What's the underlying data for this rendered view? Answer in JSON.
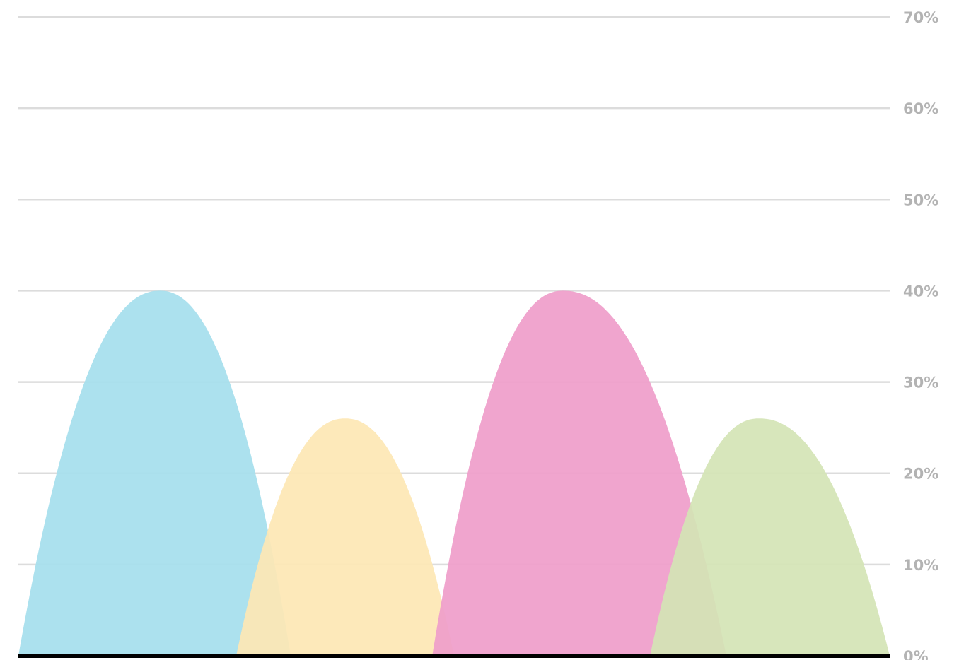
{
  "chart_data": {
    "type": "area",
    "title": "",
    "xlabel": "",
    "ylabel": "",
    "ylim": [
      0,
      70
    ],
    "yticks": [
      0,
      10,
      20,
      30,
      40,
      50,
      60,
      70
    ],
    "ytick_labels": [
      "0%",
      "10%",
      "20%",
      "30%",
      "40%",
      "50%",
      "60%",
      "70%"
    ],
    "y_axis_position": "right",
    "grid": true,
    "legend": "none",
    "x_domain": [
      0,
      4
    ],
    "series": [
      {
        "x_start": 0.0,
        "peak_x": 0.65,
        "x_end": 1.25,
        "peak_value": 40,
        "color": "#a5deed"
      },
      {
        "x_start": 1.0,
        "peak_x": 1.5,
        "x_end": 2.0,
        "peak_value": 26,
        "color": "#fde7b4"
      },
      {
        "x_start": 1.9,
        "peak_x": 2.5,
        "x_end": 3.25,
        "peak_value": 40,
        "color": "#ef9dca"
      },
      {
        "x_start": 2.9,
        "peak_x": 3.4,
        "x_end": 4.0,
        "peak_value": 26,
        "color": "#d4e4b5"
      }
    ]
  }
}
